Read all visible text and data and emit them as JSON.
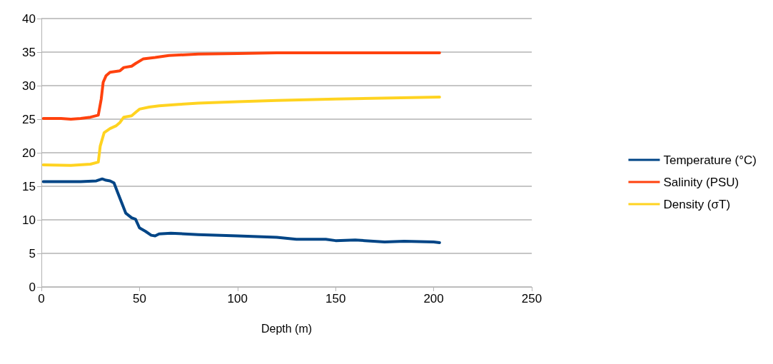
{
  "chart_data": {
    "type": "line",
    "xlabel": "Depth (m)",
    "xlim": [
      0,
      250
    ],
    "xticks": [
      0,
      50,
      100,
      150,
      200,
      250
    ],
    "ylim": [
      0,
      40
    ],
    "yticks": [
      0,
      5,
      10,
      15,
      20,
      25,
      30,
      35,
      40
    ],
    "grid": "y",
    "legend": "right",
    "marker": "none",
    "line_style": "solid",
    "series": [
      {
        "name": "Temperature (°C)",
        "color": "#004586",
        "x": [
          1,
          10,
          20,
          28,
          31,
          33,
          35,
          37,
          39,
          41,
          43,
          46,
          48,
          50,
          53,
          56,
          58,
          60,
          66,
          80,
          100,
          120,
          130,
          145,
          150,
          160,
          165,
          175,
          185,
          200,
          203
        ],
        "values": [
          15.7,
          15.7,
          15.7,
          15.8,
          16.1,
          15.9,
          15.8,
          15.5,
          14,
          12.5,
          11,
          10.3,
          10.1,
          8.8,
          8.3,
          7.7,
          7.6,
          7.9,
          8.0,
          7.8,
          7.6,
          7.4,
          7.1,
          7.1,
          6.9,
          7.0,
          6.9,
          6.7,
          6.8,
          6.7,
          6.6
        ]
      },
      {
        "name": "Salinity (PSU)",
        "color": "#ff420e",
        "x": [
          1,
          10,
          15,
          20,
          25,
          29,
          30.5,
          31.5,
          33,
          35,
          40,
          42,
          46,
          48,
          52,
          58,
          65,
          80,
          100,
          120,
          160,
          203
        ],
        "values": [
          25.1,
          25.1,
          25.0,
          25.1,
          25.3,
          25.6,
          28,
          30.5,
          31.5,
          32,
          32.2,
          32.7,
          32.9,
          33.3,
          34,
          34.2,
          34.5,
          34.7,
          34.8,
          34.9,
          34.9,
          34.9
        ]
      },
      {
        "name": "Density (σT)",
        "color": "#ffd320",
        "x": [
          1,
          15,
          25,
          29,
          30,
          32,
          35,
          38,
          40,
          42,
          46,
          48,
          50,
          55,
          60,
          70,
          80,
          100,
          120,
          150,
          203
        ],
        "values": [
          18.2,
          18.1,
          18.3,
          18.6,
          21,
          23,
          23.6,
          24,
          24.5,
          25.3,
          25.5,
          26,
          26.5,
          26.8,
          27,
          27.2,
          27.4,
          27.6,
          27.8,
          28,
          28.3
        ]
      }
    ]
  }
}
